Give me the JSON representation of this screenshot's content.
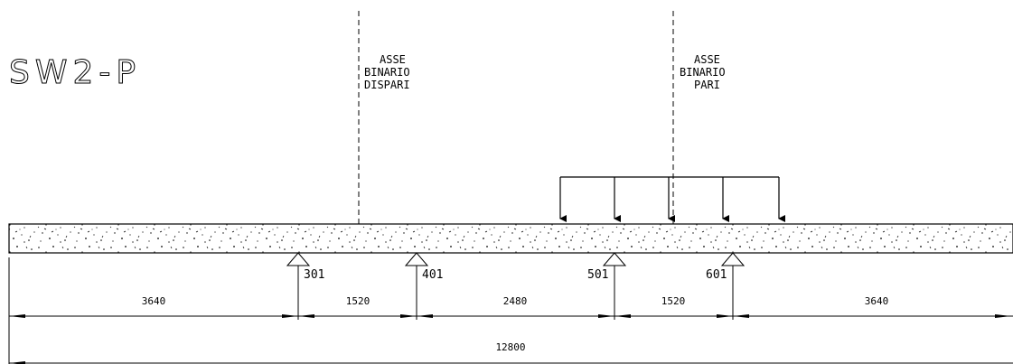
{
  "title": "SW2-P",
  "axes": [
    {
      "lines": [
        "ASSE",
        "BINARIO",
        "DISPARI"
      ]
    },
    {
      "lines": [
        "ASSE",
        "BINARIO",
        "PARI"
      ]
    }
  ],
  "supports": [
    {
      "label": "301"
    },
    {
      "label": "401"
    },
    {
      "label": "501"
    },
    {
      "label": "601"
    }
  ],
  "dimensions": {
    "spans": [
      "3640",
      "1520",
      "2480",
      "1520",
      "3640"
    ],
    "total": "12800"
  },
  "load_arrows_count": 5,
  "colors": {
    "line": "#000000",
    "concrete_fill": "#ffffff"
  }
}
